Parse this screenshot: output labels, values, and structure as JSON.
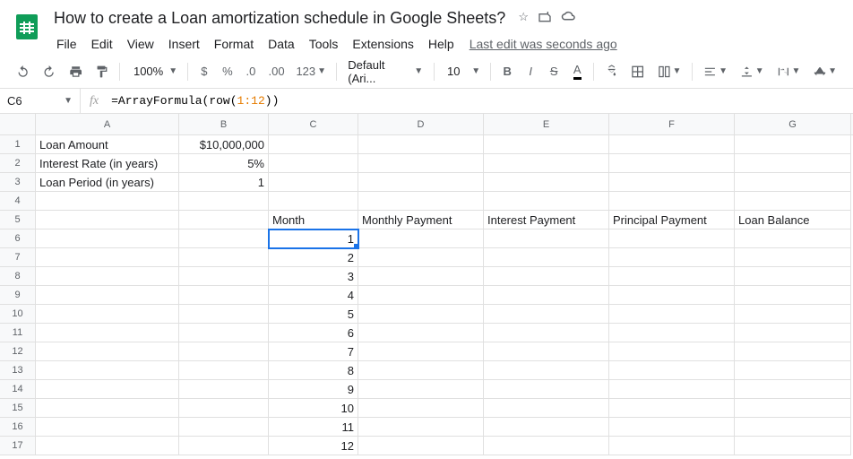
{
  "doc": {
    "title": "How to create a Loan amortization schedule in Google Sheets?",
    "last_edit": "Last edit was seconds ago"
  },
  "menus": [
    "File",
    "Edit",
    "View",
    "Insert",
    "Format",
    "Data",
    "Tools",
    "Extensions",
    "Help"
  ],
  "toolbar": {
    "zoom": "100%",
    "font": "Default (Ari...",
    "size": "10"
  },
  "formula_bar": {
    "cell_ref": "C6",
    "formula_prefix": "=ArrayFormula(row(",
    "formula_range": "1:12",
    "formula_suffix": "))"
  },
  "columns": [
    "A",
    "B",
    "C",
    "D",
    "E",
    "F",
    "G"
  ],
  "col_widths": {
    "A": 160,
    "B": 100,
    "C": 100,
    "D": 140,
    "E": 140,
    "F": 140,
    "G": 130
  },
  "selected_cell": "C6",
  "rows": [
    {
      "n": 1,
      "cells": {
        "A": "Loan Amount",
        "B": "$10,000,000"
      },
      "align": {
        "B": "right"
      }
    },
    {
      "n": 2,
      "cells": {
        "A": "Interest Rate (in years)",
        "B": "5%"
      },
      "align": {
        "B": "right"
      }
    },
    {
      "n": 3,
      "cells": {
        "A": "Loan Period (in years)",
        "B": "1"
      },
      "align": {
        "B": "right"
      }
    },
    {
      "n": 4,
      "cells": {}
    },
    {
      "n": 5,
      "cells": {
        "C": "Month",
        "D": "Monthly Payment",
        "E": "Interest Payment",
        "F": "Principal Payment",
        "G": "Loan Balance"
      }
    },
    {
      "n": 6,
      "cells": {
        "C": "1"
      },
      "align": {
        "C": "right"
      }
    },
    {
      "n": 7,
      "cells": {
        "C": "2"
      },
      "align": {
        "C": "right"
      }
    },
    {
      "n": 8,
      "cells": {
        "C": "3"
      },
      "align": {
        "C": "right"
      }
    },
    {
      "n": 9,
      "cells": {
        "C": "4"
      },
      "align": {
        "C": "right"
      }
    },
    {
      "n": 10,
      "cells": {
        "C": "5"
      },
      "align": {
        "C": "right"
      }
    },
    {
      "n": 11,
      "cells": {
        "C": "6"
      },
      "align": {
        "C": "right"
      }
    },
    {
      "n": 12,
      "cells": {
        "C": "7"
      },
      "align": {
        "C": "right"
      }
    },
    {
      "n": 13,
      "cells": {
        "C": "8"
      },
      "align": {
        "C": "right"
      }
    },
    {
      "n": 14,
      "cells": {
        "C": "9"
      },
      "align": {
        "C": "right"
      }
    },
    {
      "n": 15,
      "cells": {
        "C": "10"
      },
      "align": {
        "C": "right"
      }
    },
    {
      "n": 16,
      "cells": {
        "C": "11"
      },
      "align": {
        "C": "right"
      }
    },
    {
      "n": 17,
      "cells": {
        "C": "12"
      },
      "align": {
        "C": "right"
      }
    }
  ],
  "colors": {
    "accent": "#1a73e8",
    "sheets_green": "#0f9d58",
    "border": "#e0e0e0",
    "header_bg": "#f8f9fa",
    "text_muted": "#5f6368"
  }
}
